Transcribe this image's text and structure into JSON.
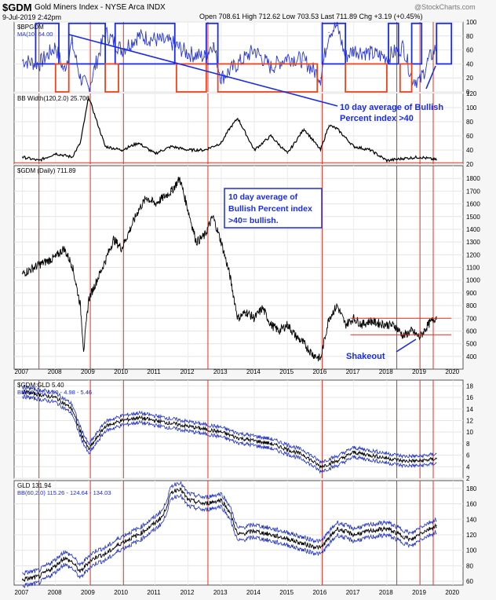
{
  "header": {
    "symbol": "$GDM",
    "name": "Gold Miners Index - NYSE Arca INDX",
    "date": "9-Jul-2019 2:42pm",
    "quote": "Open 708.61  High 712.62  Low 703.53  Last 711.89  Chg +3.19 (+0.45%)",
    "brand": "@StockCharts.com"
  },
  "chart_data": [
    {
      "type": "line",
      "panel": "bpgdm",
      "title": "$BPGDM",
      "legend": "MA(10) 64.00",
      "ylim": [
        0,
        100
      ],
      "yticks": [
        0,
        20,
        40,
        60,
        80,
        100
      ],
      "x": [
        2007.0,
        2007.5,
        2008.0,
        2008.25,
        2008.5,
        2008.75,
        2009.0,
        2009.5,
        2010.0,
        2010.5,
        2011.0,
        2011.5,
        2012.0,
        2012.5,
        2012.75,
        2013.0,
        2013.5,
        2014.0,
        2014.5,
        2015.0,
        2015.5,
        2016.0,
        2016.25,
        2016.5,
        2016.75,
        2017.0,
        2017.5,
        2018.0,
        2018.5,
        2018.75,
        2019.0,
        2019.25,
        2019.5
      ],
      "values": [
        45,
        40,
        65,
        30,
        70,
        20,
        5,
        85,
        60,
        80,
        75,
        70,
        55,
        50,
        70,
        20,
        40,
        60,
        35,
        50,
        45,
        20,
        85,
        95,
        50,
        60,
        55,
        50,
        65,
        20,
        15,
        45,
        64
      ],
      "annotation": "10 day average of Bullish Percent index >40"
    },
    {
      "type": "line",
      "panel": "bbwidth",
      "title": "BB Width(120,2.0) 25.706",
      "ylim": [
        20,
        120
      ],
      "yticks": [
        20,
        40,
        60,
        80,
        100,
        120
      ],
      "x": [
        2007.0,
        2007.5,
        2008.0,
        2008.5,
        2008.75,
        2009.0,
        2009.5,
        2010.0,
        2010.5,
        2011.0,
        2011.5,
        2012.0,
        2012.5,
        2013.0,
        2013.25,
        2013.5,
        2014.0,
        2014.5,
        2015.0,
        2015.5,
        2016.0,
        2016.25,
        2016.5,
        2017.0,
        2017.5,
        2018.0,
        2018.5,
        2019.0,
        2019.5
      ],
      "values": [
        30,
        25,
        35,
        30,
        50,
        115,
        45,
        40,
        50,
        35,
        45,
        40,
        40,
        50,
        70,
        85,
        40,
        60,
        35,
        70,
        40,
        75,
        70,
        45,
        40,
        25,
        28,
        30,
        26
      ]
    },
    {
      "type": "line",
      "panel": "gdm",
      "title": "$GDM (Daily) 711.89",
      "ylim": [
        300,
        1900
      ],
      "yticks": [
        400,
        500,
        600,
        700,
        800,
        900,
        1000,
        1100,
        1200,
        1300,
        1400,
        1500,
        1600,
        1700,
        1800
      ],
      "x": [
        2007.0,
        2007.5,
        2008.0,
        2008.25,
        2008.5,
        2008.75,
        2008.85,
        2009.0,
        2009.25,
        2009.5,
        2009.75,
        2010.0,
        2010.25,
        2010.5,
        2010.75,
        2011.0,
        2011.25,
        2011.5,
        2011.75,
        2012.0,
        2012.25,
        2012.5,
        2012.75,
        2013.0,
        2013.25,
        2013.5,
        2013.75,
        2014.0,
        2014.25,
        2014.5,
        2014.75,
        2015.0,
        2015.25,
        2015.5,
        2015.75,
        2016.0,
        2016.25,
        2016.5,
        2016.75,
        2017.0,
        2017.25,
        2017.5,
        2017.75,
        2018.0,
        2018.25,
        2018.5,
        2018.75,
        2019.0,
        2019.25,
        2019.5
      ],
      "values": [
        1050,
        1120,
        1180,
        1250,
        1120,
        800,
        450,
        850,
        1000,
        1150,
        1320,
        1250,
        1400,
        1550,
        1650,
        1600,
        1650,
        1700,
        1800,
        1550,
        1300,
        1350,
        1500,
        1300,
        1050,
        700,
        750,
        700,
        780,
        650,
        600,
        650,
        560,
        500,
        420,
        380,
        700,
        800,
        650,
        700,
        650,
        680,
        660,
        650,
        640,
        560,
        600,
        550,
        650,
        712
      ],
      "hlines": [
        570,
        700
      ],
      "annotations": [
        "10 day average of Bullish Percent index >40= bullish.",
        "Shakeout"
      ]
    },
    {
      "type": "line",
      "panel": "ratio",
      "title": "$GDM:GLD 5.40",
      "legend": "BB(60,2.0) 4.50 - 4.98 - 5.46",
      "ylim": [
        2,
        19
      ],
      "yticks": [
        2,
        4,
        6,
        8,
        10,
        12,
        14,
        16,
        18
      ],
      "x": [
        2007.0,
        2007.5,
        2008.0,
        2008.25,
        2008.5,
        2008.75,
        2009.0,
        2009.25,
        2009.5,
        2010.0,
        2010.5,
        2011.0,
        2011.5,
        2012.0,
        2012.5,
        2013.0,
        2013.5,
        2014.0,
        2014.5,
        2015.0,
        2015.5,
        2016.0,
        2016.5,
        2017.0,
        2017.5,
        2018.0,
        2018.5,
        2019.0,
        2019.5
      ],
      "values": [
        17,
        16.5,
        16,
        15,
        14,
        10,
        7,
        9,
        11,
        12,
        12.5,
        12,
        11.5,
        11,
        10.5,
        10,
        9,
        8.5,
        8,
        7,
        6,
        4,
        5,
        6.5,
        6,
        5.5,
        5,
        5,
        5.4
      ]
    },
    {
      "type": "line",
      "panel": "gld",
      "title": "GLD 131.94",
      "legend": "BB(60,2.0) 115.26 - 124.64 - 134.03",
      "ylim": [
        55,
        190
      ],
      "yticks": [
        60,
        80,
        100,
        120,
        140,
        160,
        180
      ],
      "x": [
        2007.0,
        2007.5,
        2008.0,
        2008.25,
        2008.5,
        2008.75,
        2009.0,
        2009.25,
        2009.5,
        2010.0,
        2010.5,
        2011.0,
        2011.25,
        2011.5,
        2011.75,
        2012.0,
        2012.5,
        2013.0,
        2013.25,
        2013.5,
        2014.0,
        2014.5,
        2015.0,
        2015.5,
        2016.0,
        2016.5,
        2017.0,
        2017.5,
        2018.0,
        2018.5,
        2018.75,
        2019.0,
        2019.5
      ],
      "values": [
        62,
        66,
        80,
        90,
        85,
        72,
        85,
        92,
        95,
        110,
        120,
        135,
        145,
        175,
        180,
        165,
        160,
        165,
        150,
        120,
        125,
        120,
        115,
        108,
        103,
        128,
        120,
        125,
        128,
        118,
        113,
        122,
        132
      ]
    }
  ],
  "x_axis_years": [
    "2007",
    "2008",
    "2009",
    "2010",
    "2011",
    "2012",
    "2013",
    "2014",
    "2015",
    "2016",
    "2017",
    "2018",
    "2019",
    "2020"
  ],
  "vertical_markers": [
    2007.5,
    2009.05,
    2010.05,
    2012.6,
    2016.05,
    2018.3,
    2019.0,
    2019.4
  ],
  "bpgdm_boxes": {
    "blue": [
      [
        2007.4,
        2008.1
      ],
      [
        2008.4,
        2009.5
      ],
      [
        2009.8,
        2011.6
      ],
      [
        2012.55,
        2012.9
      ],
      [
        2016.05,
        2016.75
      ],
      [
        2018.05,
        2018.35
      ],
      [
        2018.75,
        2019.05
      ],
      [
        2019.5,
        2019.95
      ]
    ],
    "red": [
      [
        2008.0,
        2008.4
      ],
      [
        2009.5,
        2009.9
      ],
      [
        2011.65,
        2012.55
      ],
      [
        2012.9,
        2015.9
      ],
      [
        2016.75,
        2018.0
      ],
      [
        2018.4,
        2018.75
      ]
    ]
  },
  "colors": {
    "price": "#000000",
    "ma": "#2a38d0",
    "marker": "#e03020",
    "box_blue": "#1a2be8",
    "box_red": "#e8451e",
    "annot": "#1a2be8",
    "band": "#2030c0",
    "ratio": "#000000"
  }
}
